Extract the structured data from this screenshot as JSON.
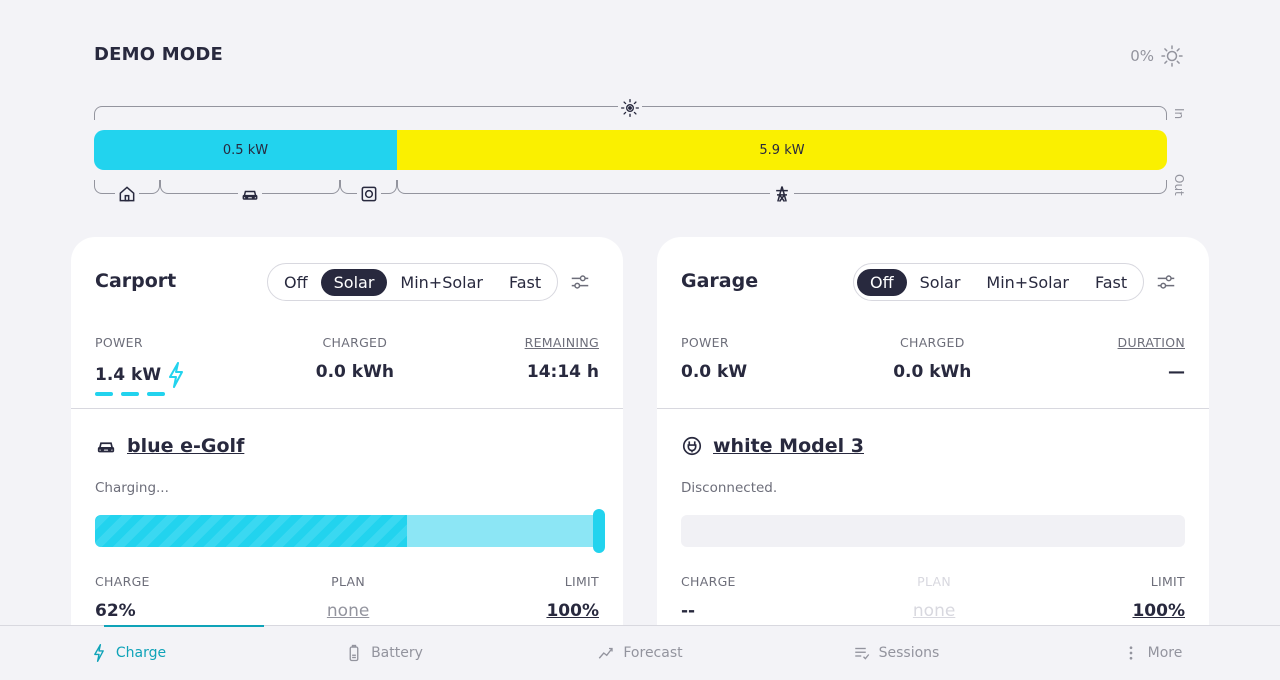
{
  "header": {
    "title": "DEMO MODE",
    "solar_percent": "0%"
  },
  "flow": {
    "in_label": "In",
    "out_label": "Out",
    "home_power": "0.5 kW",
    "grid_power": "5.9 kW"
  },
  "loadpoints": [
    {
      "title": "Carport",
      "modes": [
        "Off",
        "Solar",
        "Min+Solar",
        "Fast"
      ],
      "active_mode": "Solar",
      "power_label": "POWER",
      "power_value": "1.4 kW",
      "charged_label": "CHARGED",
      "charged_value": "0.0 kWh",
      "remaining_label": "REMAINING",
      "remaining_value": "14:14 h",
      "vehicle_name": "blue e-Golf",
      "vehicle_status": "Charging...",
      "charge_label": "CHARGE",
      "charge_value": "62%",
      "charge_fraction": 0.62,
      "plan_label": "PLAN",
      "plan_value": "none",
      "limit_label": "LIMIT",
      "limit_value": "100%"
    },
    {
      "title": "Garage",
      "modes": [
        "Off",
        "Solar",
        "Min+Solar",
        "Fast"
      ],
      "active_mode": "Off",
      "power_label": "POWER",
      "power_value": "0.0 kW",
      "charged_label": "CHARGED",
      "charged_value": "0.0 kWh",
      "duration_label": "DURATION",
      "duration_value": "—",
      "vehicle_name": "white Model 3",
      "vehicle_status": "Disconnected.",
      "charge_label": "CHARGE",
      "charge_value": "--",
      "plan_label": "PLAN",
      "plan_value": "none",
      "limit_label": "LIMIT",
      "limit_value": "100%"
    }
  ],
  "nav": {
    "charge": "Charge",
    "battery": "Battery",
    "forecast": "Forecast",
    "sessions": "Sessions",
    "more": "More"
  },
  "colors": {
    "accent": "#22d3ee",
    "solar": "#faf000",
    "dark": "#28293e",
    "nav_active": "#0fa3b8"
  }
}
